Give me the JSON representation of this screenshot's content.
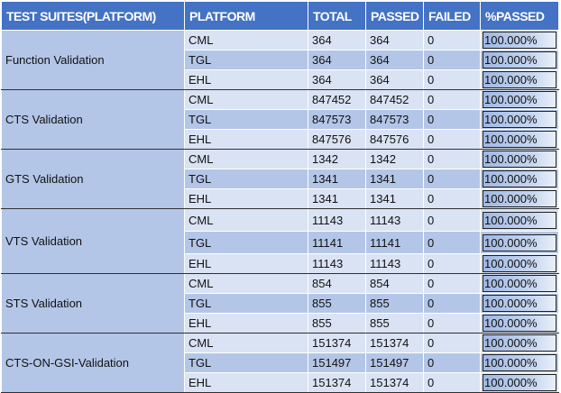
{
  "headers": [
    "TEST SUITES(PLATFORM)",
    "PLATFORM",
    "TOTAL",
    "PASSED",
    "FAILED",
    "%PASSED"
  ],
  "groups": [
    {
      "suite": "Function Validation",
      "rows": [
        {
          "platform": "CML",
          "total": "364",
          "passed": "364",
          "failed": "0",
          "pct_text": "100.000%",
          "pct": 1.0
        },
        {
          "platform": "TGL",
          "total": "364",
          "passed": "364",
          "failed": "0",
          "pct_text": "100.000%",
          "pct": 1.0
        },
        {
          "platform": "EHL",
          "total": "364",
          "passed": "364",
          "failed": "0",
          "pct_text": "100.000%",
          "pct": 1.0
        }
      ]
    },
    {
      "suite": "CTS Validation",
      "rows": [
        {
          "platform": "CML",
          "total": "847452",
          "passed": "847452",
          "failed": "0",
          "pct_text": "100.000%",
          "pct": 1.0
        },
        {
          "platform": "TGL",
          "total": "847573",
          "passed": "847573",
          "failed": "0",
          "pct_text": "100.000%",
          "pct": 1.0
        },
        {
          "platform": "EHL",
          "total": "847576",
          "passed": "847576",
          "failed": "0",
          "pct_text": "100.000%",
          "pct": 1.0
        }
      ]
    },
    {
      "suite": "GTS Validation",
      "rows": [
        {
          "platform": "CML",
          "total": "1342",
          "passed": "1342",
          "failed": "0",
          "pct_text": "100.000%",
          "pct": 1.0
        },
        {
          "platform": "TGL",
          "total": "1341",
          "passed": "1341",
          "failed": "0",
          "pct_text": "100.000%",
          "pct": 1.0
        },
        {
          "platform": "EHL",
          "total": "1341",
          "passed": "1341",
          "failed": "0",
          "pct_text": "100.000%",
          "pct": 1.0
        }
      ]
    },
    {
      "suite": "VTS Validation",
      "rows": [
        {
          "platform": "CML",
          "total": "11143",
          "passed": "11143",
          "failed": "0",
          "pct_text": "100.000%",
          "pct": 1.0
        },
        {
          "platform": "TGL",
          "total": "11141",
          "passed": "11141",
          "failed": "0",
          "pct_text": "100.000%",
          "pct": 1.0
        },
        {
          "platform": "EHL",
          "total": "11143",
          "passed": "11143",
          "failed": "0",
          "pct_text": "100.000%",
          "pct": 1.0
        }
      ]
    },
    {
      "suite": "STS Validation",
      "rows": [
        {
          "platform": "CML",
          "total": "854",
          "passed": "854",
          "failed": "0",
          "pct_text": "100.000%",
          "pct": 1.0
        },
        {
          "platform": "TGL",
          "total": "855",
          "passed": "855",
          "failed": "0",
          "pct_text": "100.000%",
          "pct": 1.0
        },
        {
          "platform": "EHL",
          "total": "855",
          "passed": "855",
          "failed": "0",
          "pct_text": "100.000%",
          "pct": 1.0
        }
      ]
    },
    {
      "suite": "CTS-ON-GSI-Validation",
      "rows": [
        {
          "platform": "CML",
          "total": "151374",
          "passed": "151374",
          "failed": "0",
          "pct_text": "100.000%",
          "pct": 1.0
        },
        {
          "platform": "TGL",
          "total": "151497",
          "passed": "151497",
          "failed": "0",
          "pct_text": "100.000%",
          "pct": 1.0
        },
        {
          "platform": "EHL",
          "total": "151374",
          "passed": "151374",
          "failed": "0",
          "pct_text": "100.000%",
          "pct": 1.0
        }
      ]
    }
  ],
  "colors": {
    "header_bg": "#4472c4",
    "header_text": "#ffffff",
    "suite_bg": "#b4c6e7",
    "row_light": "#dae3f3",
    "row_mid": "#b4c6e7",
    "bar_fill": "#9fb8e3"
  }
}
